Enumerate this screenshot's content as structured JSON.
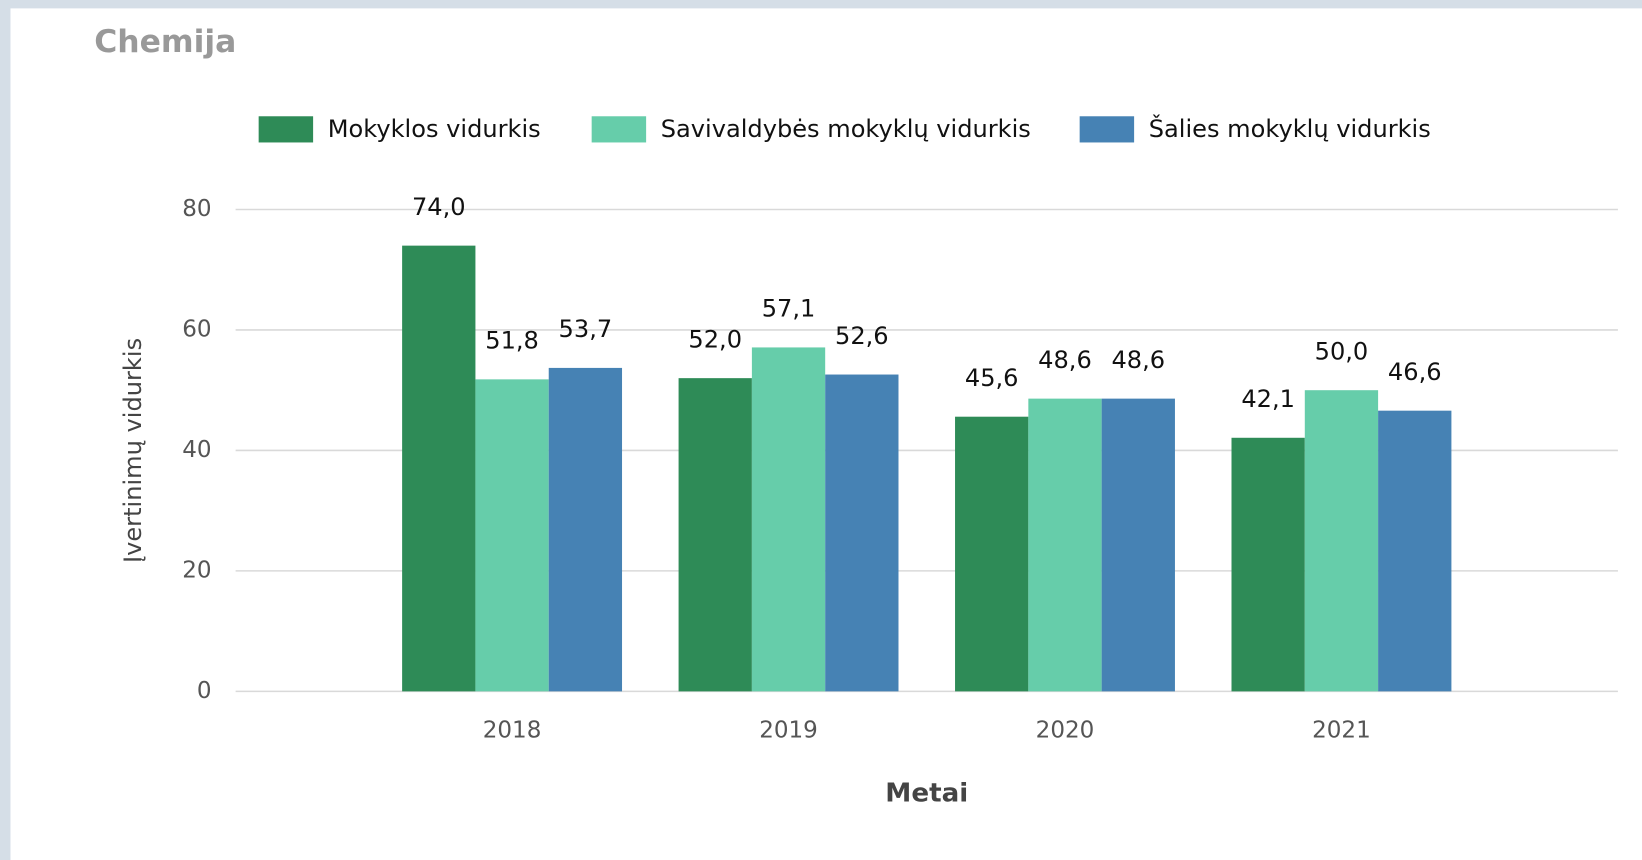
{
  "chart_data": {
    "type": "bar",
    "title": "Chemija",
    "x_label": "Metai",
    "y_label": "Įvertinimų vidurkis",
    "categories": [
      "2018",
      "2019",
      "2020",
      "2021"
    ],
    "series": [
      {
        "name": "Mokyklos vidurkis",
        "color": "#2e8b57",
        "values": [
          74.0,
          52.0,
          45.6,
          42.1
        ],
        "value_labels": [
          "74,0",
          "52,0",
          "45,6",
          "42,1"
        ]
      },
      {
        "name": "Savivaldybės mokyklų vidurkis",
        "color": "#66cdaa",
        "values": [
          51.8,
          57.1,
          48.6,
          50.0
        ],
        "value_labels": [
          "51,8",
          "57,1",
          "48,6",
          "50,0"
        ]
      },
      {
        "name": "Šalies mokyklų vidurkis",
        "color": "#4682b4",
        "values": [
          53.7,
          52.6,
          48.6,
          46.6
        ],
        "value_labels": [
          "53,7",
          "52,6",
          "48,6",
          "46,6"
        ]
      }
    ],
    "ylim": [
      0,
      80
    ],
    "yticks": [
      0,
      20,
      40,
      60,
      80
    ],
    "grid": true,
    "legend": "top"
  }
}
